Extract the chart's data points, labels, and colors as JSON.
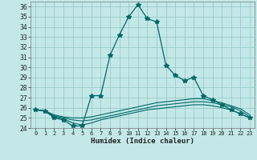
{
  "xlabel": "Humidex (Indice chaleur)",
  "background_color": "#c4e8e8",
  "grid_color": "#98cccc",
  "line_color": "#006868",
  "xlim": [
    -0.5,
    23.5
  ],
  "ylim": [
    24,
    36.5
  ],
  "yticks": [
    24,
    25,
    26,
    27,
    28,
    29,
    30,
    31,
    32,
    33,
    34,
    35,
    36
  ],
  "xticks": [
    0,
    1,
    2,
    3,
    4,
    5,
    6,
    7,
    8,
    9,
    10,
    11,
    12,
    13,
    14,
    15,
    16,
    17,
    18,
    19,
    20,
    21,
    22,
    23
  ],
  "series": [
    {
      "x": [
        0,
        1,
        2,
        3,
        4,
        5,
        6,
        7,
        8,
        9,
        10,
        11,
        12,
        13,
        14,
        15,
        16,
        17,
        18,
        19,
        20,
        21,
        22,
        23
      ],
      "y": [
        25.8,
        25.7,
        25.0,
        24.8,
        24.2,
        24.2,
        27.2,
        27.2,
        31.2,
        33.2,
        35.0,
        36.2,
        34.8,
        34.5,
        30.2,
        29.2,
        28.7,
        29.0,
        27.2,
        26.8,
        26.3,
        25.8,
        25.4,
        25.0
      ],
      "marker": "*",
      "markersize": 4,
      "linewidth": 0.9,
      "linestyle": "-"
    },
    {
      "x": [
        0,
        1,
        2,
        3,
        4,
        5,
        6,
        7,
        8,
        9,
        10,
        11,
        12,
        13,
        14,
        15,
        16,
        17,
        18,
        19,
        20,
        21,
        22,
        23
      ],
      "y": [
        25.8,
        25.7,
        25.3,
        25.1,
        25.0,
        25.0,
        25.1,
        25.3,
        25.5,
        25.7,
        25.9,
        26.1,
        26.3,
        26.5,
        26.6,
        26.7,
        26.8,
        26.9,
        26.9,
        26.7,
        26.5,
        26.2,
        25.9,
        25.3
      ],
      "marker": null,
      "markersize": 0,
      "linewidth": 0.8,
      "linestyle": "-"
    },
    {
      "x": [
        0,
        1,
        2,
        3,
        4,
        5,
        6,
        7,
        8,
        9,
        10,
        11,
        12,
        13,
        14,
        15,
        16,
        17,
        18,
        19,
        20,
        21,
        22,
        23
      ],
      "y": [
        25.8,
        25.7,
        25.2,
        25.0,
        24.8,
        24.7,
        24.8,
        25.0,
        25.2,
        25.4,
        25.6,
        25.8,
        26.0,
        26.2,
        26.3,
        26.4,
        26.5,
        26.6,
        26.6,
        26.5,
        26.3,
        26.1,
        25.7,
        25.1
      ],
      "marker": null,
      "markersize": 0,
      "linewidth": 0.8,
      "linestyle": "-"
    },
    {
      "x": [
        0,
        1,
        2,
        3,
        4,
        5,
        6,
        7,
        8,
        9,
        10,
        11,
        12,
        13,
        14,
        15,
        16,
        17,
        18,
        19,
        20,
        21,
        22,
        23
      ],
      "y": [
        25.8,
        25.7,
        25.1,
        24.9,
        24.5,
        24.3,
        24.5,
        24.8,
        25.0,
        25.2,
        25.4,
        25.6,
        25.8,
        25.9,
        26.0,
        26.1,
        26.2,
        26.3,
        26.3,
        26.2,
        26.0,
        25.8,
        25.4,
        25.0
      ],
      "marker": null,
      "markersize": 0,
      "linewidth": 0.8,
      "linestyle": "-"
    }
  ]
}
